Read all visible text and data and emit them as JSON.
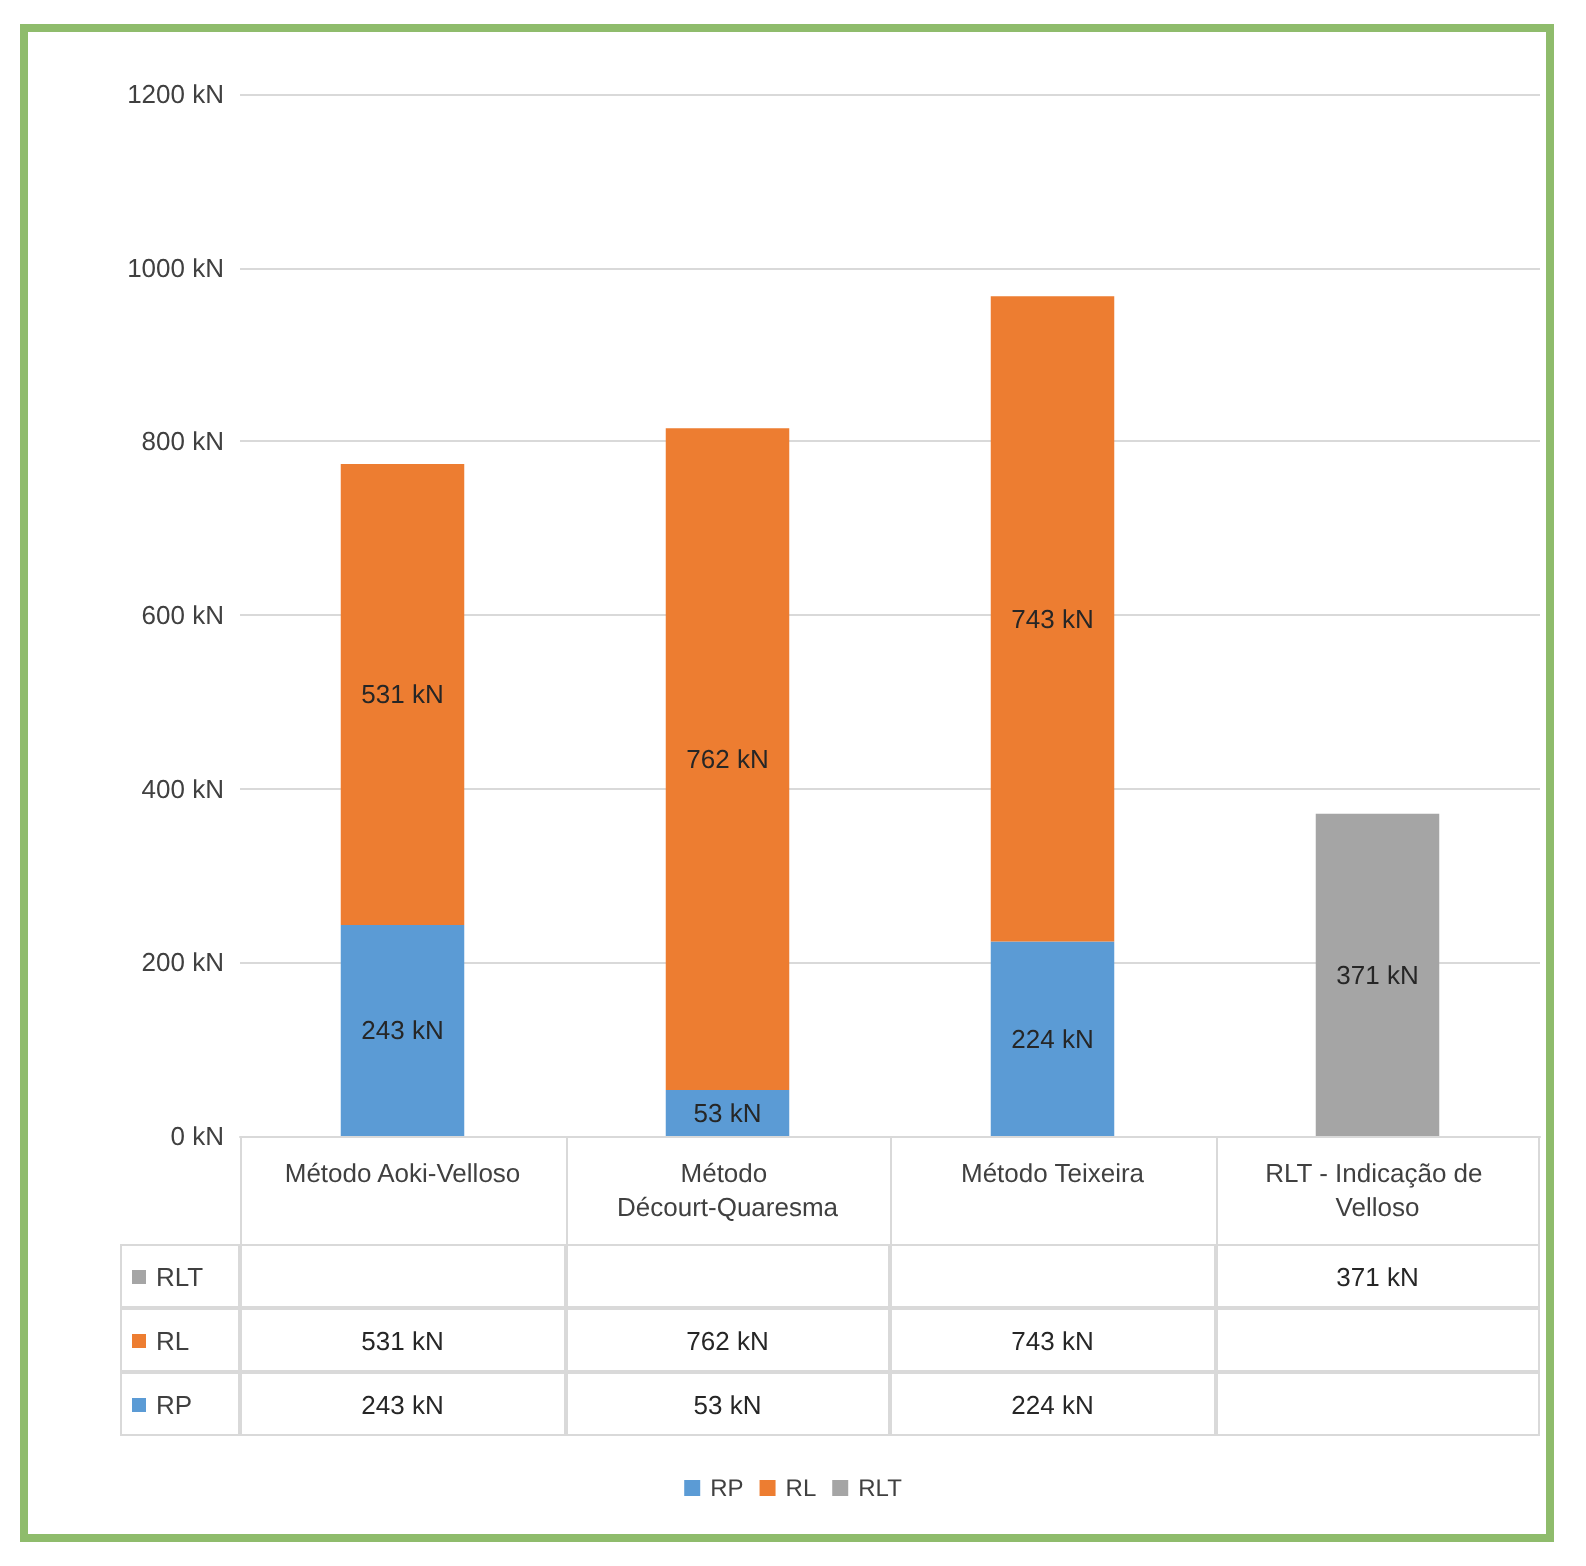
{
  "chart_data": {
    "type": "bar",
    "stacked": true,
    "categories": [
      "Método Aoki-Velloso",
      "Método Décourt-Quaresma",
      "Método Teixeira",
      "RLT - Indicação de Velloso"
    ],
    "series": [
      {
        "name": "RP",
        "color": "#5b9bd5",
        "values": [
          243,
          53,
          224,
          null
        ],
        "value_labels": [
          "243 kN",
          "53 kN",
          "224 kN",
          null
        ]
      },
      {
        "name": "RL",
        "color": "#ed7d31",
        "values": [
          531,
          762,
          743,
          null
        ],
        "value_labels": [
          "531 kN",
          "762 kN",
          "743 kN",
          null
        ]
      },
      {
        "name": "RLT",
        "color": "#a5a5a5",
        "values": [
          null,
          null,
          null,
          371
        ],
        "value_labels": [
          null,
          null,
          null,
          "371 kN"
        ]
      }
    ],
    "ylim": [
      0,
      1200
    ],
    "yticks": [
      {
        "value": 0,
        "label": "0 kN"
      },
      {
        "value": 200,
        "label": "200 kN"
      },
      {
        "value": 400,
        "label": "400 kN"
      },
      {
        "value": 600,
        "label": "600 kN"
      },
      {
        "value": 800,
        "label": "800 kN"
      },
      {
        "value": 1000,
        "label": "1000 kN"
      },
      {
        "value": 1200,
        "label": "1200 kN"
      }
    ],
    "grid": "y",
    "legend": "bottom"
  }
}
